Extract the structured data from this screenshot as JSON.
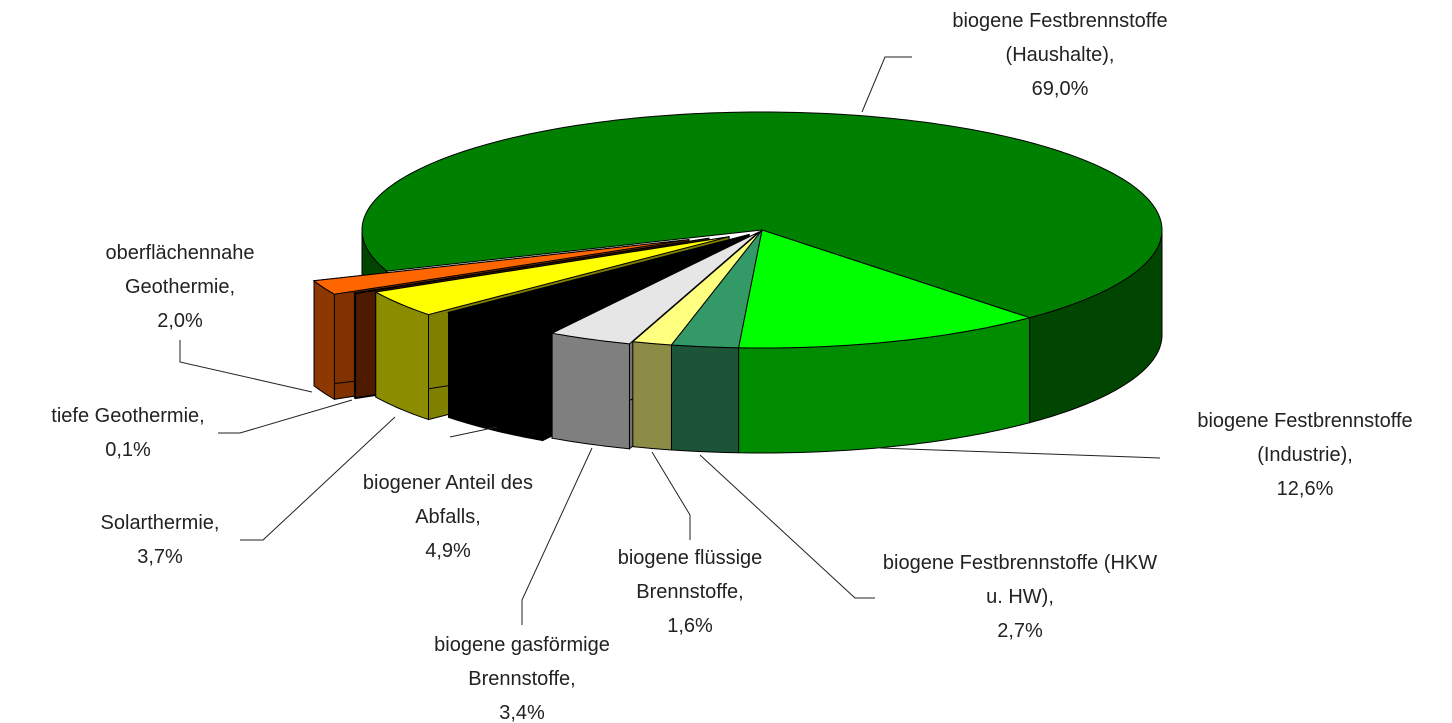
{
  "chart_data": {
    "type": "pie3d",
    "categories": [
      "biogene Festbrennstoffe (Industrie),",
      "biogene Festbrennstoffe (HKW u. HW),",
      "biogene flüssige Brennstoffe,",
      "biogene gasförmige Brennstoffe,",
      "biogener Anteil des Abfalls,",
      "Solarthermie,",
      "tiefe Geothermie,",
      "oberflächennahe Geothermie,",
      "biogene Festbrennstoffe (Haushalte),"
    ],
    "values": [
      12.6,
      2.7,
      1.6,
      3.4,
      4.9,
      3.7,
      0.1,
      2.0,
      69.0
    ],
    "value_labels": [
      "12,6%",
      "2,7%",
      "1,6%",
      "3,4%",
      "4,9%",
      "3,7%",
      "0,1%",
      "2,0%",
      "69,0%"
    ],
    "colors": [
      "#00ff00",
      "#339966",
      "#ffff80",
      "#e6e6e6",
      "#000000",
      "#ffff00",
      "#993300",
      "#ff6600",
      "#008000"
    ]
  }
}
